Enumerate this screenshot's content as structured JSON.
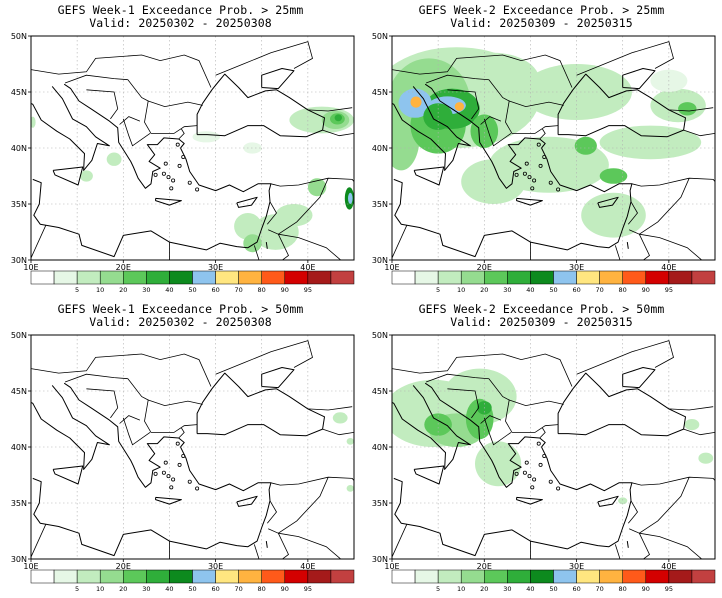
{
  "colors": {
    "scale": [
      "#ffffff",
      "#e6f7e6",
      "#c2ecbf",
      "#95dc90",
      "#5cc85a",
      "#2fae3a",
      "#0d8a1e",
      "#8ec4ee",
      "#ffe680",
      "#ffb340",
      "#ff5a1a",
      "#d40000",
      "#a51a1a",
      "#c24040"
    ],
    "land_line": "#000000",
    "grid": "#b0b0b0"
  },
  "map": {
    "lat_labels": [
      "50N",
      "45N",
      "40N",
      "35N",
      "30N"
    ],
    "lon_labels": [
      "10E",
      "20E",
      "30E",
      "40E"
    ]
  },
  "colorbar": {
    "labels": [
      "5",
      "10",
      "20",
      "30",
      "40",
      "50",
      "60",
      "70",
      "80",
      "90",
      "95"
    ]
  },
  "panels": [
    {
      "title": "GEFS Week-1 Exceedance Prob. > 25mm",
      "valid": "Valid: 20250302 - 20250308",
      "intensity": "low"
    },
    {
      "title": "GEFS Week-2 Exceedance Prob. > 25mm",
      "valid": "Valid: 20250309 - 20250315",
      "intensity": "high"
    },
    {
      "title": "GEFS Week-1 Exceedance Prob. > 50mm",
      "valid": "Valid: 20250302 - 20250308",
      "intensity": "none"
    },
    {
      "title": "GEFS Week-2 Exceedance Prob. > 50mm",
      "valid": "Valid: 20250309 - 20250315",
      "intensity": "medium"
    }
  ]
}
